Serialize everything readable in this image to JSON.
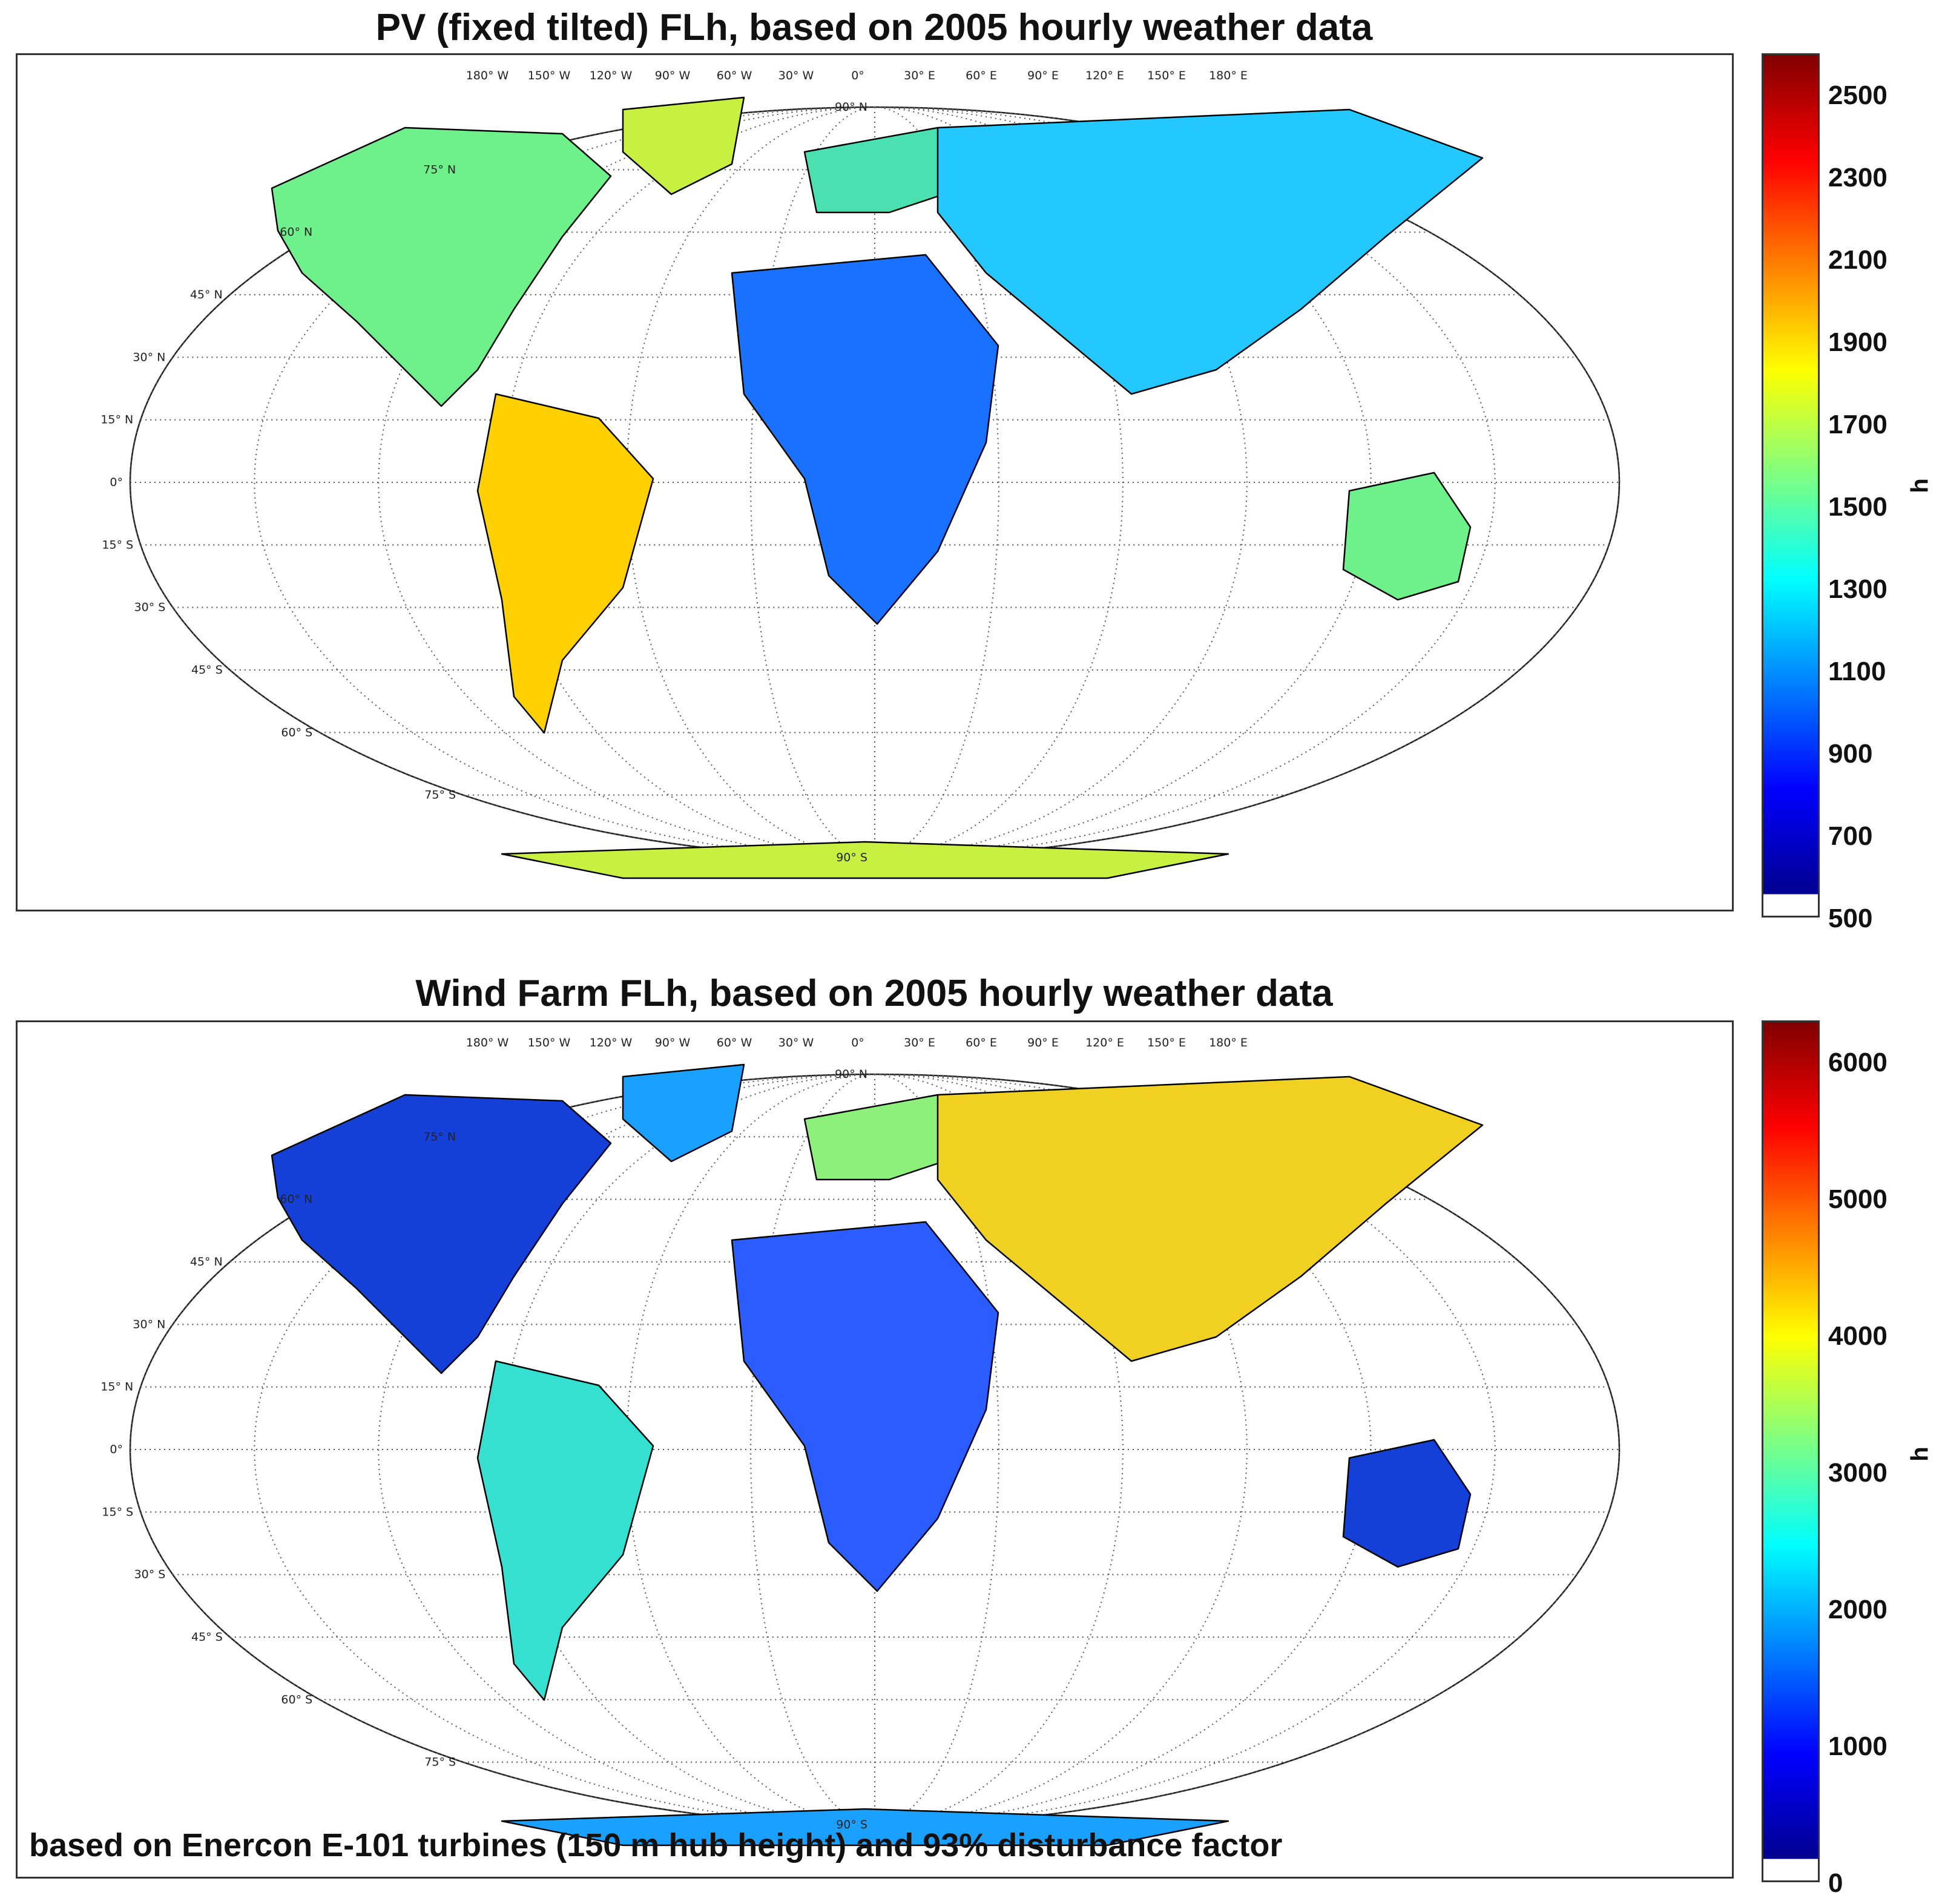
{
  "panels": [
    {
      "id": "pv",
      "title": "PV (fixed tilted) FLh, based on 2005 hourly weather data",
      "colorbar": {
        "ticks": [
          "2500",
          "2300",
          "2100",
          "1900",
          "1700",
          "1500",
          "1300",
          "1100",
          "900",
          "700",
          "500"
        ],
        "unit": "h",
        "min": 500,
        "max": 2600
      },
      "note": ""
    },
    {
      "id": "wind",
      "title": "Wind Farm FLh, based on 2005 hourly weather data",
      "colorbar": {
        "ticks": [
          "6000",
          "5000",
          "4000",
          "3000",
          "2000",
          "1000",
          "0"
        ],
        "unit": "h",
        "min": 0,
        "max": 6300
      },
      "note": "based on Enercon E-101 turbines (150 m hub height) and 93% disturbance factor"
    }
  ],
  "graticule": {
    "lon_labels": [
      "180° W",
      "150° W",
      "120° W",
      "90° W",
      "60° W",
      "30° W",
      "0°",
      "30° E",
      "60° E",
      "90° E",
      "120° E",
      "150° E",
      "180° E"
    ],
    "lat_labels": [
      "90° N",
      "75° N",
      "60° N",
      "45° N",
      "30° N",
      "15° N",
      "0°",
      "15° S",
      "30° S",
      "45° S",
      "60° S",
      "75° S",
      "90° S"
    ]
  },
  "colors": {
    "colormap": [
      "#00008f",
      "#0000ff",
      "#0080ff",
      "#00ffff",
      "#80ff80",
      "#ffff00",
      "#ff8000",
      "#ff0000",
      "#800000"
    ],
    "land_outline": "#000000",
    "graticule": "#555555"
  }
}
